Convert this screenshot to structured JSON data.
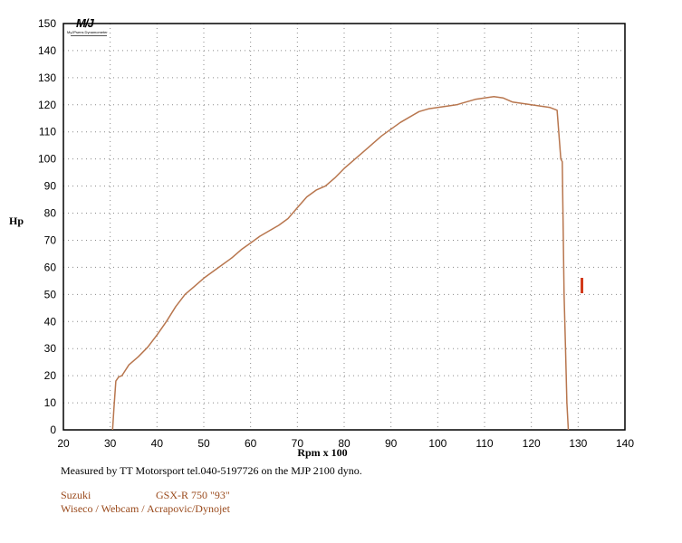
{
  "chart_data": {
    "type": "line",
    "title": "",
    "xlabel": "Rpm x 100",
    "ylabel": "Hp",
    "xlim": [
      20,
      140
    ],
    "ylim": [
      0,
      150
    ],
    "x_ticks": [
      "20",
      "30",
      "40",
      "50",
      "60",
      "70",
      "80",
      "90",
      "100",
      "110",
      "120",
      "130",
      "140"
    ],
    "y_ticks": [
      "0",
      "10",
      "20",
      "30",
      "40",
      "50",
      "60",
      "70",
      "80",
      "90",
      "100",
      "110",
      "120",
      "130",
      "140",
      "150"
    ],
    "grid": true,
    "series": [
      {
        "color": "#b8764e",
        "x": [
          30.5,
          30.8,
          31.2,
          31.8,
          32.5,
          34,
          36,
          38,
          40,
          42,
          44,
          46,
          48,
          50,
          52,
          54,
          56,
          58,
          60,
          62,
          64,
          66,
          68,
          70,
          72,
          74,
          76,
          78,
          80,
          82,
          84,
          86,
          88,
          90,
          92,
          94,
          96,
          98,
          100,
          102,
          104,
          106,
          108,
          110,
          112,
          114,
          116,
          118,
          120,
          122,
          124,
          125.5,
          126.3,
          126.6,
          127,
          127.3,
          127.6,
          127.9
        ],
        "values": [
          0,
          8,
          18,
          19.5,
          20,
          24,
          27,
          30.5,
          35,
          40,
          45.5,
          50,
          53,
          56,
          58.5,
          61,
          63.5,
          66.5,
          69,
          71.5,
          73.5,
          75.5,
          78,
          82,
          86,
          88.5,
          90,
          93,
          96.5,
          99.5,
          102.5,
          105.5,
          108.5,
          111,
          113.5,
          115.5,
          117.5,
          118.5,
          119,
          119.5,
          120,
          121,
          122,
          122.5,
          123,
          122.5,
          121,
          120.5,
          120,
          119.5,
          119,
          118,
          100,
          99,
          50,
          30,
          10,
          0
        ]
      }
    ]
  },
  "logo": {
    "mark": "M/J",
    "sub": "MyJPsens Dynamometer"
  },
  "captions": {
    "measured_by": "Measured by TT Motorsport tel.040-5197726 on the MJP 2100 dyno.",
    "make": "Suzuki",
    "model": "GSX-R 750 \"93\"",
    "mods": "Wiseco / Webcam / Acrapovic/Dynojet"
  }
}
